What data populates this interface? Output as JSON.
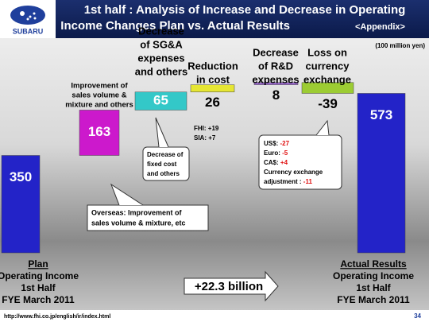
{
  "chart_data": {
    "type": "waterfall",
    "title": [
      "1st half : Analysis of Increase and Decrease in Operating",
      "Income Changes  Plan vs. Actual Results",
      "<Appendix>"
    ],
    "logo": "SUBARU",
    "unit": "(100 million yen)",
    "categories": [
      [
        "Plan",
        "Operating Income",
        "1st Half",
        "FYE March 2011"
      ],
      [
        "Improvement of",
        "sales volume &",
        "mixture and others"
      ],
      [
        "Decrease",
        "of SG&A",
        "expenses",
        "and others"
      ],
      [
        "Reduction",
        "in cost"
      ],
      [
        "Decrease",
        "of R&D",
        "expenses"
      ],
      [
        "Loss on",
        "currency",
        "exchange"
      ],
      [
        "Actual Results",
        "Operating Income",
        "1st Half",
        "FYE March 2011"
      ]
    ],
    "values": [
      350,
      163,
      65,
      26,
      8,
      -39,
      573
    ],
    "is_total": [
      true,
      false,
      false,
      false,
      false,
      false,
      true
    ],
    "colors": [
      "#2323c8",
      "#cc19cc",
      "#33c8c8",
      "#e6e633",
      "#9c6ad0",
      "#9ccc33",
      "#2323c8"
    ],
    "annotations": {
      "overseas": [
        "Overseas: Improvement of",
        "sales volume & mixture, etc"
      ],
      "fixed_cost": [
        "Decrease of",
        "fixed cost",
        "and others"
      ],
      "cost": [
        "FHI: +19",
        "SIA: +7"
      ],
      "currency": [
        [
          "US$: ",
          "-27"
        ],
        [
          "Euro: ",
          "-5"
        ],
        [
          "CA$: ",
          "+4"
        ],
        [
          "Currency exchange",
          ""
        ],
        [
          "adjustment : ",
          "-11"
        ]
      ],
      "total_change": "+22.3 billion"
    },
    "footer": {
      "url": "http://www.fhi.co.jp/english/ir/index.html",
      "page": "34"
    }
  }
}
